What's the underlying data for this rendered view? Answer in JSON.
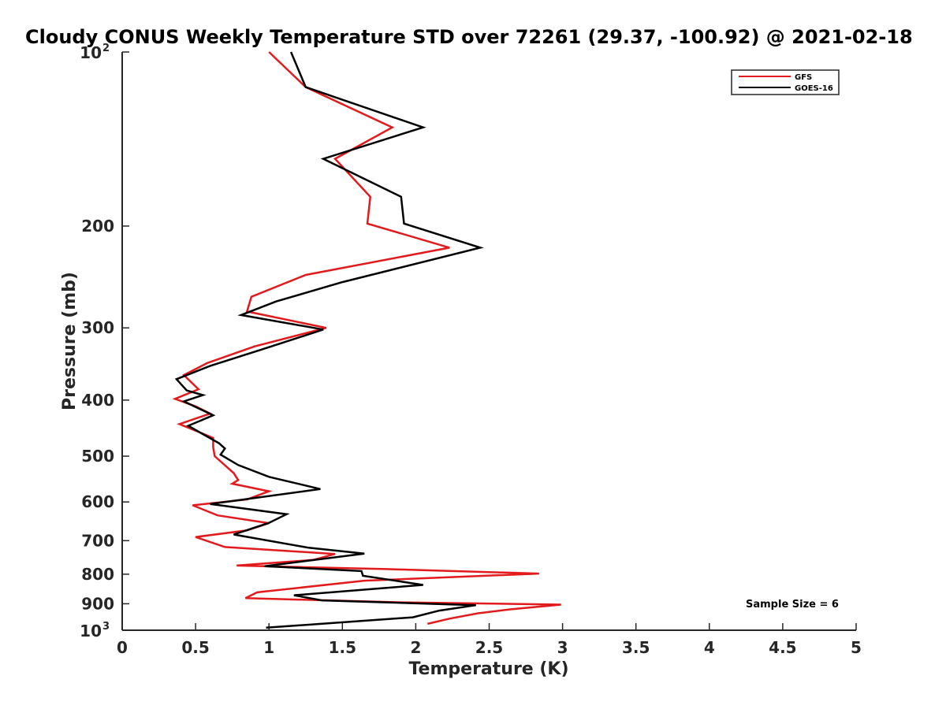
{
  "chart_data": {
    "type": "line",
    "title": "Cloudy CONUS Weekly Temperature STD over 72261 (29.37, -100.92) @ 2021-02-18",
    "xlabel": "Temperature (K)",
    "ylabel": "Pressure (mb)",
    "xlim": [
      0,
      5
    ],
    "ylim": [
      100,
      1000
    ],
    "yscale": "log",
    "y_reversed": true,
    "grid": false,
    "legend_position": "top-right",
    "x_ticks": [
      "0",
      "0.5",
      "1",
      "1.5",
      "2",
      "2.5",
      "3",
      "3.5",
      "4",
      "4.5",
      "5"
    ],
    "y_ticks": [
      {
        "value": 100,
        "base": "10",
        "exp": "2"
      },
      {
        "value": 200,
        "label": "200"
      },
      {
        "value": 300,
        "label": "300"
      },
      {
        "value": 400,
        "label": "400"
      },
      {
        "value": 500,
        "label": "500"
      },
      {
        "value": 600,
        "label": "600"
      },
      {
        "value": 700,
        "label": "700"
      },
      {
        "value": 800,
        "label": "800"
      },
      {
        "value": 900,
        "label": "900"
      },
      {
        "value": 1000,
        "base": "10",
        "exp": "3"
      }
    ],
    "annotation": "Sample Size = 6",
    "series": [
      {
        "name": "GFS",
        "color": "#e31a1c",
        "points": [
          [
            1.0,
            100
          ],
          [
            1.25,
            115
          ],
          [
            1.84,
            135
          ],
          [
            1.45,
            153
          ],
          [
            1.69,
            178
          ],
          [
            1.67,
            198
          ],
          [
            2.23,
            218
          ],
          [
            1.25,
            243
          ],
          [
            0.88,
            265
          ],
          [
            0.85,
            281
          ],
          [
            1.39,
            300
          ],
          [
            0.9,
            323
          ],
          [
            0.58,
            345
          ],
          [
            0.42,
            362
          ],
          [
            0.52,
            383
          ],
          [
            0.36,
            398
          ],
          [
            0.5,
            410
          ],
          [
            0.6,
            422
          ],
          [
            0.39,
            440
          ],
          [
            0.62,
            465
          ],
          [
            0.62,
            482
          ],
          [
            0.63,
            500
          ],
          [
            0.76,
            535
          ],
          [
            0.79,
            550
          ],
          [
            0.75,
            558
          ],
          [
            1.0,
            575
          ],
          [
            0.85,
            594
          ],
          [
            0.48,
            608
          ],
          [
            0.65,
            633
          ],
          [
            1.0,
            653
          ],
          [
            0.85,
            672
          ],
          [
            0.5,
            690
          ],
          [
            0.7,
            718
          ],
          [
            1.45,
            738
          ],
          [
            1.3,
            756
          ],
          [
            0.78,
            773
          ],
          [
            1.8,
            784
          ],
          [
            2.84,
            798
          ],
          [
            1.65,
            821
          ],
          [
            0.92,
            860
          ],
          [
            0.84,
            880
          ],
          [
            1.9,
            895
          ],
          [
            2.99,
            903
          ],
          [
            2.65,
            920
          ],
          [
            2.42,
            935
          ],
          [
            2.23,
            955
          ],
          [
            2.08,
            975
          ]
        ]
      },
      {
        "name": "GOES-16",
        "color": "#000000",
        "points": [
          [
            1.15,
            100
          ],
          [
            1.25,
            115
          ],
          [
            2.05,
            135
          ],
          [
            1.37,
            153
          ],
          [
            1.9,
            178
          ],
          [
            1.92,
            198
          ],
          [
            2.44,
            218
          ],
          [
            1.5,
            250
          ],
          [
            1.05,
            270
          ],
          [
            0.81,
            285
          ],
          [
            1.37,
            302
          ],
          [
            0.95,
            327
          ],
          [
            0.6,
            349
          ],
          [
            0.37,
            368
          ],
          [
            0.44,
            385
          ],
          [
            0.55,
            392
          ],
          [
            0.42,
            402
          ],
          [
            0.62,
            425
          ],
          [
            0.45,
            443
          ],
          [
            0.66,
            475
          ],
          [
            0.7,
            485
          ],
          [
            0.67,
            497
          ],
          [
            0.79,
            518
          ],
          [
            1.0,
            543
          ],
          [
            1.35,
            570
          ],
          [
            0.6,
            605
          ],
          [
            1.12,
            630
          ],
          [
            1.0,
            652
          ],
          [
            0.76,
            683
          ],
          [
            1.27,
            720
          ],
          [
            1.65,
            737
          ],
          [
            0.97,
            775
          ],
          [
            1.63,
            790
          ],
          [
            1.64,
            805
          ],
          [
            2.05,
            835
          ],
          [
            1.17,
            870
          ],
          [
            1.36,
            888
          ],
          [
            2.41,
            905
          ],
          [
            2.16,
            925
          ],
          [
            1.98,
            950
          ],
          [
            0.98,
            990
          ]
        ]
      }
    ]
  }
}
